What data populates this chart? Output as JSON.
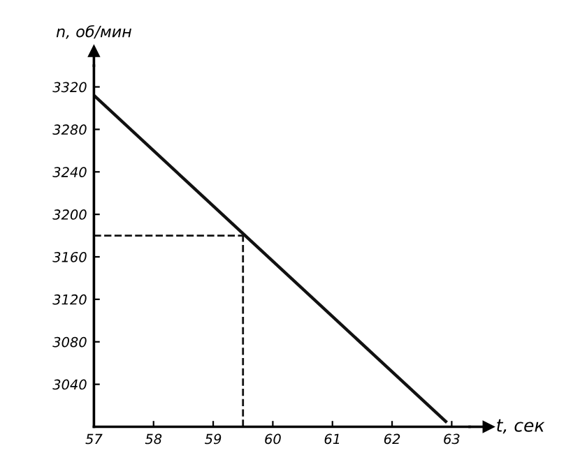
{
  "chart_data": {
    "type": "line",
    "xlabel": "t, сек",
    "ylabel": "n, об/мин",
    "x": [
      57,
      62.9
    ],
    "series": [
      {
        "color": "#111111",
        "values": [
          3312,
          3005
        ]
      }
    ],
    "xlim": [
      57,
      63.3
    ],
    "ylim": [
      3000,
      3340
    ],
    "xticks": [
      57,
      58,
      59,
      60,
      61,
      62,
      63
    ],
    "yticks": [
      3040,
      3080,
      3120,
      3160,
      3200,
      3240,
      3280,
      3320
    ],
    "ref_lines": [
      {
        "axis": "x",
        "value": 59.5,
        "color": "#111111",
        "line_style": "dashed"
      },
      {
        "axis": "y",
        "value": 3180,
        "color": "#111111",
        "line_style": "dashed"
      }
    ],
    "grid": false,
    "marker": "none",
    "line_style": "solid"
  }
}
